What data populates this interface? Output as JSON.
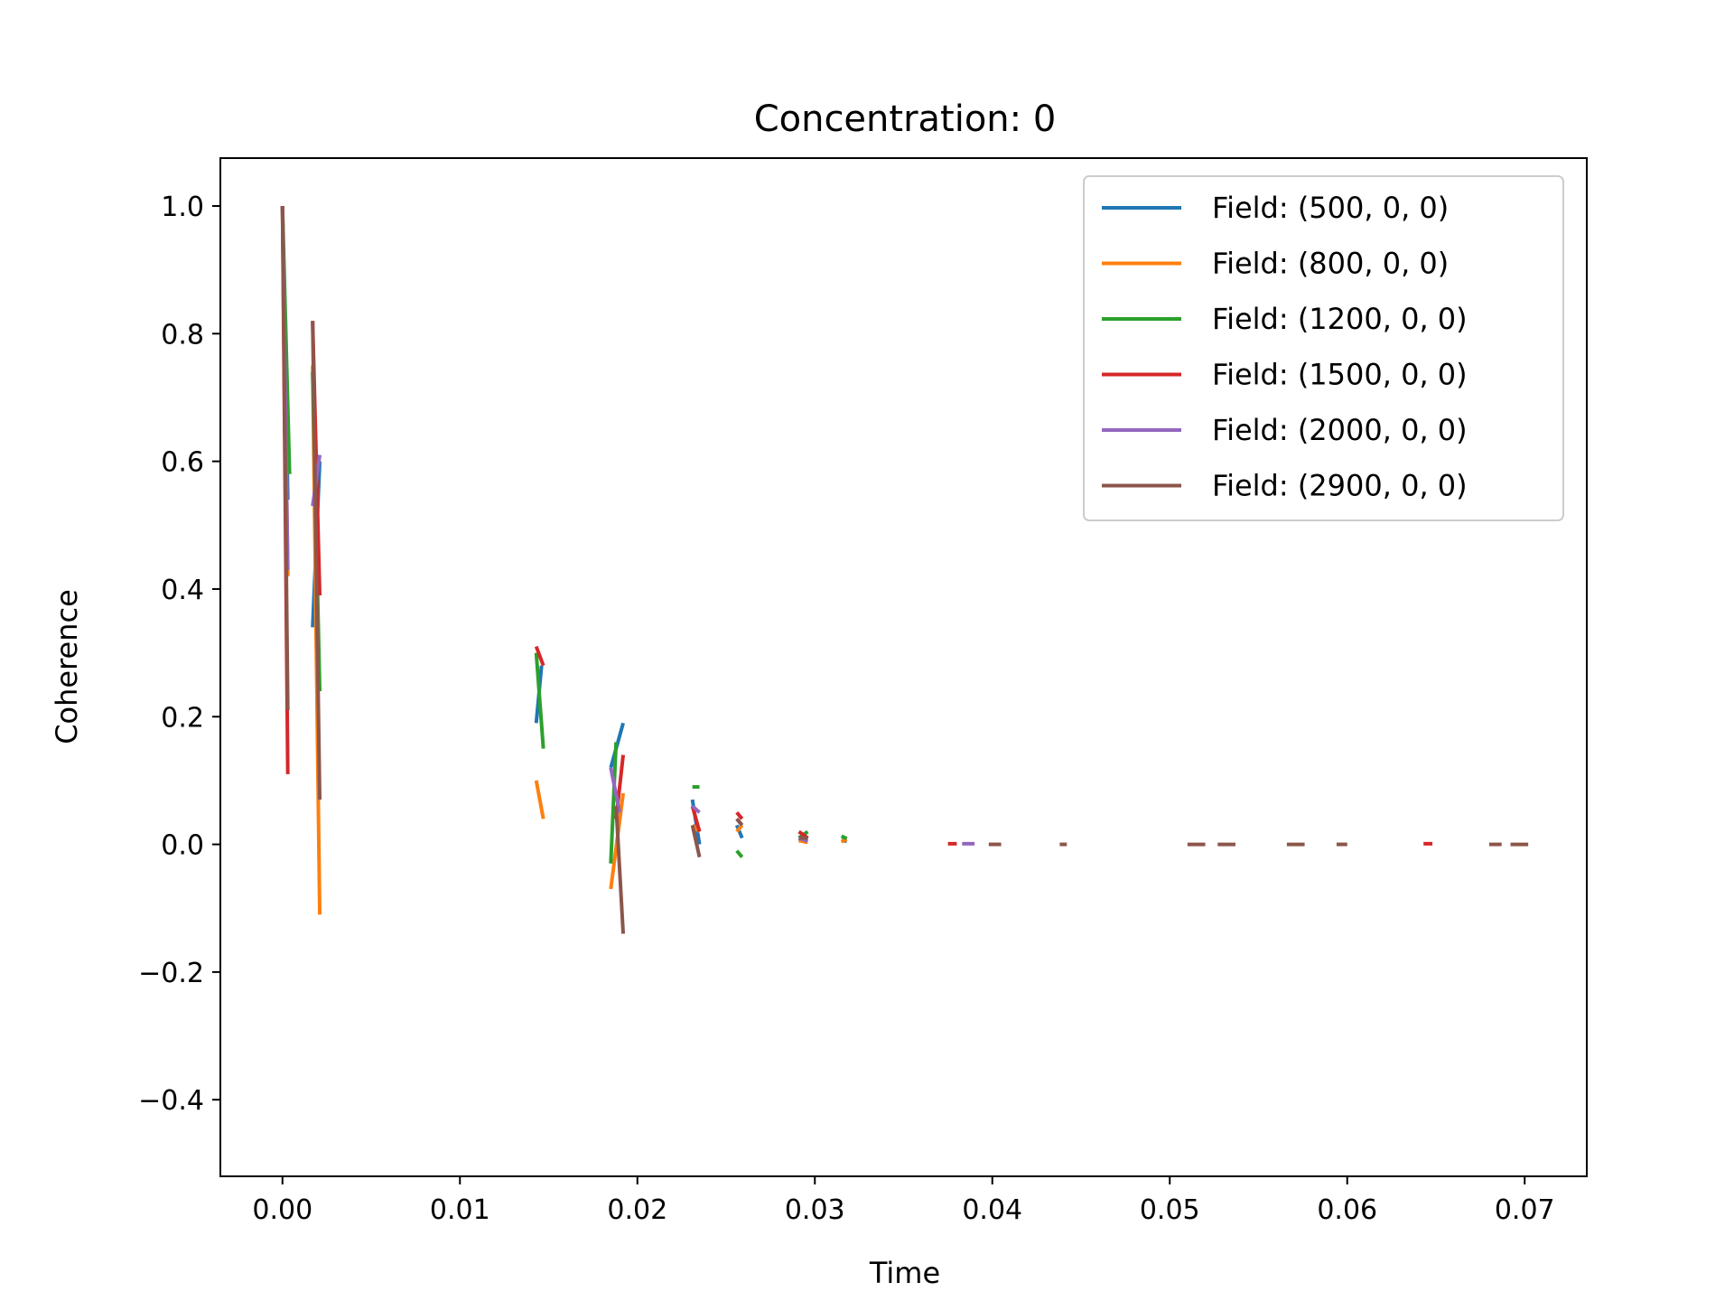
{
  "chart_data": {
    "type": "line",
    "title": "Concentration: 0",
    "xlabel": "Time",
    "ylabel": "Coherence",
    "xlim": [
      -0.0035,
      0.0735
    ],
    "ylim": [
      -0.52,
      1.075
    ],
    "xticks": [
      0.0,
      0.01,
      0.02,
      0.03,
      0.04,
      0.05,
      0.06,
      0.07
    ],
    "xtick_labels": [
      "0.00",
      "0.01",
      "0.02",
      "0.03",
      "0.04",
      "0.05",
      "0.06",
      "0.07"
    ],
    "yticks": [
      -0.4,
      -0.2,
      0.0,
      0.2,
      0.4,
      0.6,
      0.8,
      1.0
    ],
    "ytick_labels": [
      "−0.4",
      "−0.2",
      "0.0",
      "0.2",
      "0.4",
      "0.6",
      "0.8",
      "1.0"
    ],
    "grid": false,
    "legend_position": "top-right",
    "line_style": "dashed",
    "series": [
      {
        "name": "Field: (500, 0, 0)",
        "color": "#1f77b4",
        "x": [
          0.0,
          0.0003,
          0.0017,
          0.0021,
          0.0143,
          0.0146,
          0.0185,
          0.0192,
          0.0231,
          0.0235,
          0.0256,
          0.0259,
          0.0291,
          0.0296,
          0.0315,
          0.0318
        ],
        "y": [
          1.0,
          0.54,
          0.34,
          0.6,
          0.19,
          0.28,
          0.12,
          0.19,
          0.07,
          0.0,
          0.03,
          0.01,
          0.005,
          0.012,
          0.006,
          0.005
        ]
      },
      {
        "name": "Field: (800, 0, 0)",
        "color": "#ff7f0e",
        "x": [
          0.0,
          0.0003,
          0.0017,
          0.0021,
          0.0143,
          0.0147,
          0.0185,
          0.0192,
          0.0231,
          0.0235,
          0.0256,
          0.0259,
          0.0291,
          0.0296,
          0.0315,
          0.0318
        ],
        "y": [
          1.0,
          0.42,
          0.75,
          -0.11,
          0.1,
          0.04,
          -0.07,
          0.08,
          0.03,
          0.02,
          0.02,
          0.03,
          0.006,
          0.003,
          0.004,
          0.008
        ]
      },
      {
        "name": "Field: (1200, 0, 0)",
        "color": "#2ca02c",
        "x": [
          0.0,
          0.0004,
          0.0017,
          0.0021,
          0.0143,
          0.0147,
          0.0185,
          0.0188,
          0.0231,
          0.0235,
          0.0256,
          0.0259,
          0.0291,
          0.0296,
          0.0315,
          0.0318
        ],
        "y": [
          1.0,
          0.58,
          0.74,
          0.24,
          0.3,
          0.15,
          -0.03,
          0.16,
          0.09,
          0.09,
          -0.01,
          -0.02,
          0.01,
          0.02,
          0.013,
          0.009
        ]
      },
      {
        "name": "Field: (1500, 0, 0)",
        "color": "#d62728",
        "x": [
          0.0,
          0.0003,
          0.0017,
          0.0021,
          0.0143,
          0.0147,
          0.0188,
          0.0192,
          0.0231,
          0.0235,
          0.0256,
          0.0259,
          0.0291,
          0.0296,
          0.0375,
          0.038,
          0.0643,
          0.0648
        ],
        "y": [
          1.0,
          0.11,
          0.82,
          0.39,
          0.31,
          0.28,
          0.04,
          0.14,
          0.06,
          0.02,
          0.05,
          0.04,
          0.02,
          0.01,
          0.001,
          0.001,
          0.001,
          0.001
        ]
      },
      {
        "name": "Field: (2000, 0, 0)",
        "color": "#9467bd",
        "x": [
          0.0,
          0.0003,
          0.0017,
          0.0021,
          0.0185,
          0.019,
          0.0231,
          0.0235,
          0.0256,
          0.0259,
          0.0291,
          0.0296,
          0.0383,
          0.039
        ],
        "y": [
          1.0,
          0.43,
          0.53,
          0.61,
          0.12,
          0.05,
          0.06,
          0.05,
          0.04,
          0.03,
          0.01,
          0.005,
          0.001,
          0.001
        ]
      },
      {
        "name": "Field: (2900, 0, 0)",
        "color": "#8c564b",
        "x": [
          0.0,
          0.0003,
          0.0017,
          0.0021,
          0.0188,
          0.0192,
          0.0231,
          0.0235,
          0.0256,
          0.0259,
          0.0291,
          0.0296,
          0.0398,
          0.0405,
          0.0438,
          0.0442,
          0.051,
          0.052,
          0.0527,
          0.0537,
          0.0566,
          0.0576,
          0.0594,
          0.06,
          0.068,
          0.0687,
          0.0692,
          0.0702
        ],
        "y": [
          1.0,
          0.21,
          0.82,
          0.07,
          0.06,
          -0.14,
          0.03,
          -0.02,
          0.04,
          0.03,
          0.01,
          0.01,
          0.0,
          0.0,
          0.0,
          0.0,
          0.0,
          0.0,
          0.0,
          0.0,
          0.0,
          0.0,
          0.0,
          0.0,
          0.0,
          0.0,
          0.0,
          0.0
        ]
      }
    ]
  }
}
